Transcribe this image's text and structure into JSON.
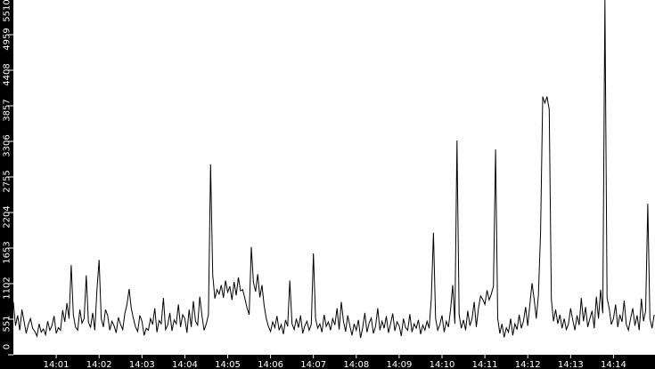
{
  "chart_data": {
    "type": "line",
    "title": "",
    "xlabel": "",
    "ylabel": "",
    "ylim": [
      0,
      5510
    ],
    "yticks": [
      0,
      551,
      1102,
      1653,
      2204,
      2755,
      3306,
      3857,
      4408,
      4959,
      5510
    ],
    "xticks": [
      "14:01",
      "14:02",
      "14:03",
      "14:04",
      "14:05",
      "14:06",
      "14:07",
      "14:08",
      "14:09",
      "14:10",
      "14:11",
      "14:12",
      "14:13",
      "14:14"
    ],
    "x_start": "14:00:00",
    "x_step_seconds": 3,
    "grid": false,
    "colors": {
      "background": "#000000",
      "plot_area": "#ffffff",
      "line": "#000000",
      "axis_text": "#ffffff"
    },
    "values": [
      820,
      450,
      610,
      380,
      700,
      520,
      330,
      470,
      560,
      410,
      360,
      290,
      480,
      350,
      400,
      310,
      520,
      380,
      450,
      600,
      330,
      420,
      380,
      690,
      510,
      800,
      560,
      1390,
      620,
      430,
      380,
      700,
      490,
      560,
      1230,
      510,
      420,
      650,
      380,
      1010,
      1470,
      560,
      430,
      700,
      610,
      380,
      520,
      450,
      340,
      580,
      470,
      390,
      640,
      780,
      1020,
      720,
      560,
      430,
      360,
      610,
      520,
      300,
      410,
      380,
      560,
      470,
      720,
      350,
      530,
      480,
      880,
      390,
      460,
      650,
      370,
      540,
      480,
      780,
      430,
      620,
      560,
      340,
      700,
      430,
      830,
      520,
      460,
      900,
      610,
      380,
      480,
      620,
      2950,
      1240,
      870,
      1010,
      940,
      1080,
      880,
      1150,
      970,
      1060,
      850,
      1130,
      920,
      1200,
      990,
      1010,
      880,
      730,
      620,
      1670,
      1120,
      980,
      1250,
      890,
      1080,
      760,
      560,
      440,
      360,
      510,
      420,
      600,
      380,
      470,
      320,
      540,
      440,
      1150,
      480,
      390,
      560,
      420,
      610,
      330,
      450,
      520,
      380,
      470,
      1570,
      560,
      410,
      480,
      350,
      620,
      440,
      510,
      380,
      560,
      460,
      720,
      390,
      820,
      520,
      360,
      610,
      450,
      300,
      480,
      380,
      540,
      260,
      420,
      650,
      350,
      490,
      570,
      330,
      440,
      720,
      380,
      520,
      410,
      600,
      340,
      480,
      640,
      370,
      510,
      450,
      290,
      560,
      420,
      380,
      630,
      350,
      480,
      410,
      540,
      320,
      460,
      380,
      520,
      410,
      880,
      1890,
      560,
      380,
      470,
      610,
      350,
      520,
      430,
      700,
      1080,
      480,
      3320,
      620,
      410,
      540,
      380,
      680,
      450,
      560,
      820,
      430,
      720,
      910,
      860,
      780,
      1000,
      850,
      940,
      1060,
      3180,
      560,
      330,
      480,
      270,
      420,
      350,
      560,
      300,
      480,
      390,
      620,
      410,
      520,
      740,
      450,
      780,
      1110,
      860,
      560,
      930,
      1900,
      4000,
      3900,
      4000,
      3800,
      860,
      520,
      700,
      480,
      620,
      410,
      560,
      390,
      480,
      720,
      540,
      380,
      610,
      460,
      880,
      520,
      740,
      430,
      560,
      680,
      410,
      900,
      560,
      1010,
      640,
      5510,
      880,
      720,
      470,
      560,
      780,
      430,
      620,
      510,
      840,
      470,
      380,
      560,
      720,
      450,
      610,
      380,
      870,
      520,
      680,
      2340,
      560,
      410,
      620
    ]
  }
}
